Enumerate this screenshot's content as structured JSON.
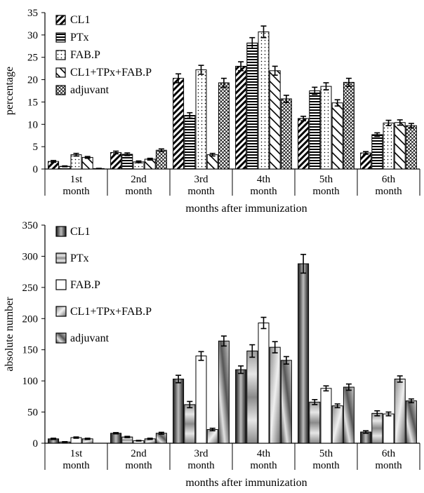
{
  "chart_data": [
    {
      "type": "bar",
      "categories": [
        "1st month",
        "2nd month",
        "3rd month",
        "4th month",
        "5th month",
        "6th month"
      ],
      "xlabel": "months after immunization",
      "ylabel": "percentage",
      "ylim": [
        0,
        35
      ],
      "yticks": [
        0,
        5,
        10,
        15,
        20,
        25,
        30,
        35
      ],
      "legend": "top-left",
      "error_bars": true,
      "series": [
        {
          "name": "CL1",
          "values": [
            1.7,
            3.7,
            20.3,
            23.0,
            11.3,
            3.6
          ],
          "errors": [
            0.2,
            0.3,
            1.0,
            1.0,
            0.5,
            0.3
          ]
        },
        {
          "name": "PTx",
          "values": [
            0.6,
            3.3,
            12.0,
            28.2,
            17.5,
            7.7
          ],
          "errors": [
            0.1,
            0.3,
            0.6,
            1.2,
            0.8,
            0.4
          ]
        },
        {
          "name": "FAB.P",
          "values": [
            3.2,
            1.6,
            22.2,
            30.7,
            18.5,
            10.3
          ],
          "errors": [
            0.3,
            0.2,
            1.0,
            1.3,
            0.8,
            0.6
          ]
        },
        {
          "name": "CL1+TPx+FAB.P",
          "values": [
            2.6,
            2.2,
            3.2,
            22.0,
            14.8,
            10.4
          ],
          "errors": [
            0.2,
            0.2,
            0.3,
            1.0,
            0.7,
            0.6
          ]
        },
        {
          "name": "adjuvant",
          "values": [
            0.1,
            4.2,
            19.3,
            15.7,
            19.4,
            9.7
          ],
          "errors": [
            0.05,
            0.3,
            1.0,
            0.8,
            0.9,
            0.5
          ]
        }
      ]
    },
    {
      "type": "bar",
      "categories": [
        "1st month",
        "2nd month",
        "3rd month",
        "4th month",
        "5th month",
        "6th month"
      ],
      "xlabel": "months after immunization",
      "ylabel": "absolute number",
      "ylim": [
        0,
        350
      ],
      "yticks": [
        0,
        50,
        100,
        150,
        200,
        250,
        300,
        350
      ],
      "legend": "top-left",
      "error_bars": true,
      "series": [
        {
          "name": "CL1",
          "values": [
            7,
            16,
            103,
            118,
            288,
            18
          ],
          "errors": [
            1,
            1,
            6,
            6,
            15,
            2
          ]
        },
        {
          "name": "PTx",
          "values": [
            2,
            10,
            62,
            148,
            66,
            48
          ],
          "errors": [
            0.5,
            1,
            5,
            10,
            4,
            4
          ]
        },
        {
          "name": "FAB.P",
          "values": [
            9,
            4,
            140,
            193,
            88,
            47
          ],
          "errors": [
            1,
            0.5,
            7,
            9,
            4,
            3
          ]
        },
        {
          "name": "CL1+TPx+FAB.P",
          "values": [
            7,
            7,
            22,
            154,
            60,
            103
          ],
          "errors": [
            1,
            1,
            2,
            9,
            3,
            5
          ]
        },
        {
          "name": "adjuvant",
          "values": [
            0,
            16,
            164,
            133,
            90,
            68
          ],
          "errors": [
            0,
            1.5,
            8,
            6,
            5,
            3
          ]
        }
      ]
    }
  ]
}
